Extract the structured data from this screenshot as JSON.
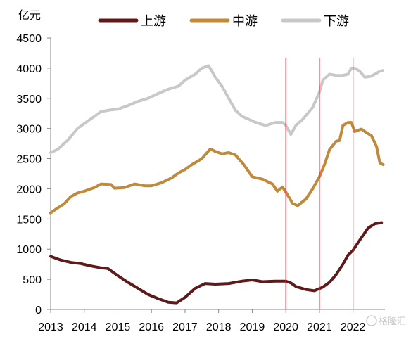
{
  "chart_data": {
    "type": "line",
    "title": "",
    "unit_label": "亿元",
    "xlabel": "",
    "ylabel": "",
    "ylim": [
      0,
      4500
    ],
    "yticks": [
      0,
      500,
      1000,
      1500,
      2000,
      2500,
      3000,
      3500,
      4000,
      4500
    ],
    "xlim": [
      2013.0,
      2022.95
    ],
    "xticks": [
      "2013",
      "2014",
      "2015",
      "2016",
      "2017",
      "2018",
      "2019",
      "2020",
      "2021",
      "2022"
    ],
    "grid": false,
    "legend_position": "top",
    "vertical_markers": [
      2020.0,
      2021.0,
      2022.0
    ],
    "vertical_marker_color": "#e8323a",
    "series": [
      {
        "name": "上游",
        "color": "#5c1a1a",
        "points": [
          [
            2013.0,
            880
          ],
          [
            2013.3,
            820
          ],
          [
            2013.6,
            780
          ],
          [
            2013.9,
            760
          ],
          [
            2014.2,
            720
          ],
          [
            2014.5,
            690
          ],
          [
            2014.7,
            680
          ],
          [
            2015.0,
            560
          ],
          [
            2015.3,
            450
          ],
          [
            2015.6,
            350
          ],
          [
            2015.9,
            250
          ],
          [
            2016.2,
            180
          ],
          [
            2016.5,
            120
          ],
          [
            2016.75,
            110
          ],
          [
            2017.0,
            200
          ],
          [
            2017.3,
            350
          ],
          [
            2017.6,
            430
          ],
          [
            2017.9,
            420
          ],
          [
            2018.3,
            430
          ],
          [
            2018.7,
            470
          ],
          [
            2019.0,
            490
          ],
          [
            2019.3,
            460
          ],
          [
            2019.7,
            470
          ],
          [
            2020.0,
            470
          ],
          [
            2020.15,
            440
          ],
          [
            2020.3,
            380
          ],
          [
            2020.6,
            330
          ],
          [
            2020.85,
            310
          ],
          [
            2021.1,
            370
          ],
          [
            2021.3,
            450
          ],
          [
            2021.5,
            580
          ],
          [
            2021.7,
            750
          ],
          [
            2021.85,
            900
          ],
          [
            2022.0,
            980
          ],
          [
            2022.2,
            1150
          ],
          [
            2022.45,
            1350
          ],
          [
            2022.65,
            1420
          ],
          [
            2022.85,
            1440
          ]
        ]
      },
      {
        "name": "中游",
        "color": "#c08a3c",
        "points": [
          [
            2013.0,
            1600
          ],
          [
            2013.2,
            1680
          ],
          [
            2013.4,
            1750
          ],
          [
            2013.6,
            1870
          ],
          [
            2013.8,
            1930
          ],
          [
            2014.0,
            1960
          ],
          [
            2014.3,
            2020
          ],
          [
            2014.5,
            2080
          ],
          [
            2014.8,
            2070
          ],
          [
            2014.9,
            2010
          ],
          [
            2015.2,
            2020
          ],
          [
            2015.5,
            2080
          ],
          [
            2015.8,
            2050
          ],
          [
            2016.0,
            2050
          ],
          [
            2016.3,
            2100
          ],
          [
            2016.6,
            2180
          ],
          [
            2016.8,
            2260
          ],
          [
            2017.0,
            2320
          ],
          [
            2017.2,
            2400
          ],
          [
            2017.5,
            2500
          ],
          [
            2017.75,
            2660
          ],
          [
            2017.9,
            2620
          ],
          [
            2018.1,
            2580
          ],
          [
            2018.3,
            2600
          ],
          [
            2018.5,
            2560
          ],
          [
            2018.75,
            2400
          ],
          [
            2019.0,
            2200
          ],
          [
            2019.3,
            2160
          ],
          [
            2019.6,
            2080
          ],
          [
            2019.75,
            1960
          ],
          [
            2019.9,
            2030
          ],
          [
            2020.05,
            1900
          ],
          [
            2020.2,
            1760
          ],
          [
            2020.35,
            1720
          ],
          [
            2020.6,
            1830
          ],
          [
            2020.8,
            2000
          ],
          [
            2021.0,
            2200
          ],
          [
            2021.15,
            2400
          ],
          [
            2021.3,
            2650
          ],
          [
            2021.5,
            2790
          ],
          [
            2021.6,
            2800
          ],
          [
            2021.7,
            3050
          ],
          [
            2021.85,
            3100
          ],
          [
            2021.95,
            3100
          ],
          [
            2022.05,
            2950
          ],
          [
            2022.25,
            2990
          ],
          [
            2022.35,
            2950
          ],
          [
            2022.55,
            2880
          ],
          [
            2022.7,
            2700
          ],
          [
            2022.8,
            2430
          ],
          [
            2022.9,
            2400
          ]
        ]
      },
      {
        "name": "下游",
        "color": "#c8c8c8",
        "points": [
          [
            2013.0,
            2600
          ],
          [
            2013.2,
            2650
          ],
          [
            2013.5,
            2800
          ],
          [
            2013.8,
            3000
          ],
          [
            2014.0,
            3080
          ],
          [
            2014.3,
            3200
          ],
          [
            2014.5,
            3280
          ],
          [
            2014.8,
            3310
          ],
          [
            2015.0,
            3320
          ],
          [
            2015.3,
            3380
          ],
          [
            2015.6,
            3450
          ],
          [
            2015.9,
            3500
          ],
          [
            2016.2,
            3580
          ],
          [
            2016.5,
            3650
          ],
          [
            2016.8,
            3700
          ],
          [
            2017.0,
            3800
          ],
          [
            2017.3,
            3900
          ],
          [
            2017.5,
            4000
          ],
          [
            2017.7,
            4040
          ],
          [
            2017.8,
            3950
          ],
          [
            2017.9,
            3850
          ],
          [
            2018.1,
            3700
          ],
          [
            2018.3,
            3500
          ],
          [
            2018.5,
            3300
          ],
          [
            2018.7,
            3200
          ],
          [
            2018.9,
            3150
          ],
          [
            2019.1,
            3100
          ],
          [
            2019.4,
            3050
          ],
          [
            2019.7,
            3100
          ],
          [
            2019.9,
            3100
          ],
          [
            2020.0,
            3050
          ],
          [
            2020.15,
            2900
          ],
          [
            2020.3,
            3050
          ],
          [
            2020.5,
            3150
          ],
          [
            2020.8,
            3350
          ],
          [
            2021.0,
            3600
          ],
          [
            2021.1,
            3800
          ],
          [
            2021.3,
            3900
          ],
          [
            2021.5,
            3880
          ],
          [
            2021.7,
            3880
          ],
          [
            2021.85,
            3900
          ],
          [
            2021.95,
            4000
          ],
          [
            2022.05,
            4000
          ],
          [
            2022.2,
            3950
          ],
          [
            2022.35,
            3850
          ],
          [
            2022.5,
            3860
          ],
          [
            2022.65,
            3900
          ],
          [
            2022.8,
            3950
          ],
          [
            2022.88,
            3960
          ]
        ]
      }
    ]
  },
  "watermark": "格隆汇"
}
